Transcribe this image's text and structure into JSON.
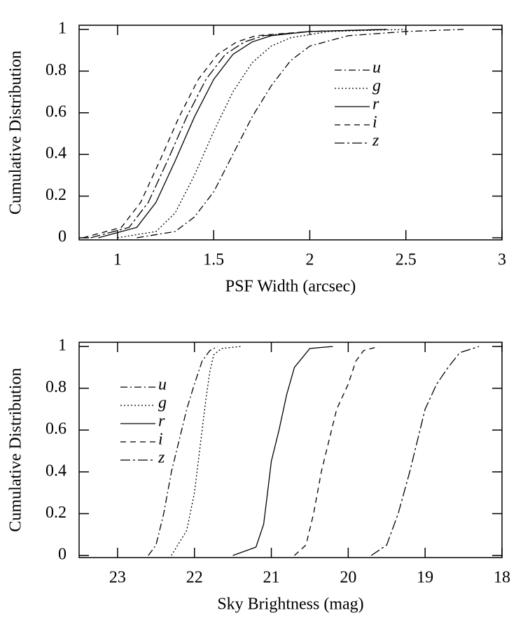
{
  "chart_data": [
    {
      "type": "line",
      "xlabel": "PSF Width (arcsec)",
      "ylabel": "Cumulative Distribution",
      "xlim": [
        0.8,
        3.0
      ],
      "ylim": [
        -0.01,
        1.02
      ],
      "xticks": [
        1,
        1.5,
        2,
        2.5,
        3
      ],
      "yticks": [
        0,
        0.2,
        0.4,
        0.6,
        0.8,
        1
      ],
      "legend": "upper right",
      "series": [
        {
          "name": "u",
          "color": "#000000",
          "x": [
            1.1,
            1.3,
            1.4,
            1.5,
            1.6,
            1.7,
            1.8,
            1.9,
            2.0,
            2.2,
            2.5,
            2.8
          ],
          "values": [
            0,
            0.03,
            0.1,
            0.22,
            0.4,
            0.58,
            0.73,
            0.85,
            0.92,
            0.97,
            0.99,
            1.0
          ]
        },
        {
          "name": "g",
          "color": "#000000",
          "x": [
            1.0,
            1.2,
            1.3,
            1.4,
            1.5,
            1.6,
            1.7,
            1.8,
            1.9,
            2.1,
            2.5
          ],
          "values": [
            0,
            0.03,
            0.12,
            0.3,
            0.51,
            0.7,
            0.84,
            0.92,
            0.96,
            0.99,
            1.0
          ]
        },
        {
          "name": "r",
          "color": "#000000",
          "x": [
            0.9,
            1.1,
            1.2,
            1.3,
            1.4,
            1.5,
            1.6,
            1.7,
            1.8,
            2.0,
            2.4
          ],
          "values": [
            0,
            0.05,
            0.17,
            0.37,
            0.58,
            0.76,
            0.88,
            0.94,
            0.97,
            0.99,
            1.0
          ]
        },
        {
          "name": "i",
          "color": "#000000",
          "x": [
            0.82,
            1.02,
            1.12,
            1.22,
            1.32,
            1.42,
            1.52,
            1.62,
            1.72,
            2.0,
            2.4
          ],
          "values": [
            0,
            0.05,
            0.17,
            0.37,
            0.58,
            0.76,
            0.88,
            0.94,
            0.97,
            0.99,
            1.0
          ]
        },
        {
          "name": "z",
          "color": "#000000",
          "x": [
            0.86,
            1.06,
            1.16,
            1.26,
            1.36,
            1.46,
            1.56,
            1.66,
            1.76,
            2.0,
            2.4
          ],
          "values": [
            0,
            0.05,
            0.17,
            0.37,
            0.58,
            0.76,
            0.88,
            0.94,
            0.97,
            0.99,
            1.0
          ]
        }
      ]
    },
    {
      "type": "line",
      "xlabel": "Sky Brightness (mag)",
      "ylabel": "Cumulative Distribution",
      "xlim": [
        23.5,
        18
      ],
      "ylim": [
        -0.01,
        1.02
      ],
      "xticks": [
        23,
        22,
        21,
        20,
        19,
        18
      ],
      "yticks": [
        0,
        0.2,
        0.4,
        0.6,
        0.8,
        1
      ],
      "legend": "upper left",
      "series": [
        {
          "name": "u",
          "color": "#000000",
          "x": [
            22.6,
            22.5,
            22.4,
            22.3,
            22.2,
            22.1,
            22.0,
            21.9,
            21.8,
            21.7
          ],
          "values": [
            0,
            0.05,
            0.2,
            0.4,
            0.55,
            0.7,
            0.82,
            0.93,
            0.98,
            1.0
          ]
        },
        {
          "name": "g",
          "color": "#000000",
          "x": [
            22.3,
            22.1,
            22.0,
            21.95,
            21.9,
            21.85,
            21.8,
            21.75,
            21.65,
            21.4
          ],
          "values": [
            0,
            0.12,
            0.3,
            0.45,
            0.6,
            0.75,
            0.88,
            0.96,
            0.99,
            1.0
          ]
        },
        {
          "name": "r",
          "color": "#000000",
          "x": [
            21.5,
            21.2,
            21.1,
            21.05,
            21.0,
            20.9,
            20.8,
            20.7,
            20.5,
            20.2
          ],
          "values": [
            0,
            0.04,
            0.15,
            0.3,
            0.45,
            0.6,
            0.77,
            0.9,
            0.99,
            1.0
          ]
        },
        {
          "name": "i",
          "color": "#000000",
          "x": [
            20.7,
            20.55,
            20.45,
            20.35,
            20.25,
            20.15,
            20.0,
            19.9,
            19.8,
            19.6
          ],
          "values": [
            0,
            0.05,
            0.2,
            0.4,
            0.55,
            0.7,
            0.82,
            0.93,
            0.98,
            1.0
          ]
        },
        {
          "name": "z",
          "color": "#000000",
          "x": [
            19.7,
            19.5,
            19.35,
            19.2,
            19.1,
            19.0,
            18.85,
            18.7,
            18.55,
            18.3
          ],
          "values": [
            0,
            0.05,
            0.2,
            0.4,
            0.55,
            0.7,
            0.82,
            0.9,
            0.97,
            1.0
          ]
        }
      ]
    }
  ]
}
